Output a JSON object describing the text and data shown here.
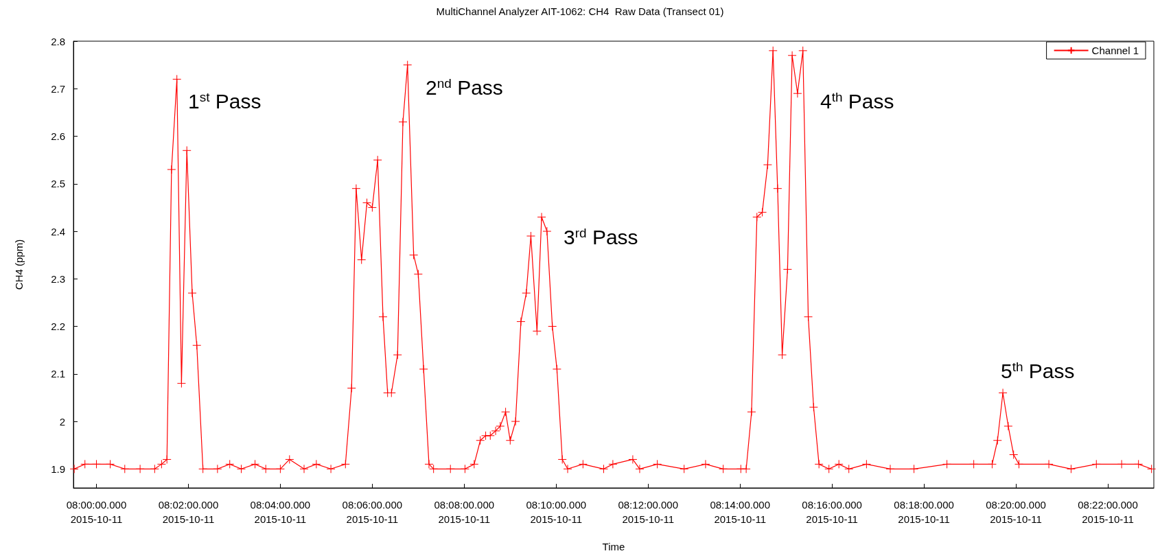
{
  "chart_data": {
    "type": "line",
    "title": "MultiChannel Analyzer AIT-1062: CH4  Raw Data (Transect 01)",
    "xlabel": "Time",
    "ylabel": "CH4 (ppm)",
    "x": [
      "2015-10-11T07:59:31",
      "2015-10-11T07:59:45",
      "2015-10-11T08:00:00",
      "2015-10-11T08:00:18",
      "2015-10-11T08:00:37",
      "2015-10-11T08:00:57",
      "2015-10-11T08:01:16",
      "2015-10-11T08:01:25",
      "2015-10-11T08:01:32",
      "2015-10-11T08:01:38",
      "2015-10-11T08:01:45",
      "2015-10-11T08:01:51",
      "2015-10-11T08:01:58",
      "2015-10-11T08:02:05",
      "2015-10-11T08:02:11",
      "2015-10-11T08:02:19",
      "2015-10-11T08:02:38",
      "2015-10-11T08:02:54",
      "2015-10-11T08:03:09",
      "2015-10-11T08:03:27",
      "2015-10-11T08:03:41",
      "2015-10-11T08:04:00",
      "2015-10-11T08:04:12",
      "2015-10-11T08:04:31",
      "2015-10-11T08:04:47",
      "2015-10-11T08:05:06",
      "2015-10-11T08:05:25",
      "2015-10-11T08:05:33",
      "2015-10-11T08:05:39",
      "2015-10-11T08:05:46",
      "2015-10-11T08:05:53",
      "2015-10-11T08:06:00",
      "2015-10-11T08:06:07",
      "2015-10-11T08:06:14",
      "2015-10-11T08:06:20",
      "2015-10-11T08:06:25",
      "2015-10-11T08:06:33",
      "2015-10-11T08:06:40",
      "2015-10-11T08:06:46",
      "2015-10-11T08:06:54",
      "2015-10-11T08:07:00",
      "2015-10-11T08:07:07",
      "2015-10-11T08:07:14",
      "2015-10-11T08:07:20",
      "2015-10-11T08:07:42",
      "2015-10-11T08:08:01",
      "2015-10-11T08:08:13",
      "2015-10-11T08:08:21",
      "2015-10-11T08:08:28",
      "2015-10-11T08:08:34",
      "2015-10-11T08:08:41",
      "2015-10-11T08:08:47",
      "2015-10-11T08:08:54",
      "2015-10-11T08:09:00",
      "2015-10-11T08:09:07",
      "2015-10-11T08:09:14",
      "2015-10-11T08:09:21",
      "2015-10-11T08:09:27",
      "2015-10-11T08:09:35",
      "2015-10-11T08:09:41",
      "2015-10-11T08:09:48",
      "2015-10-11T08:09:55",
      "2015-10-11T08:10:01",
      "2015-10-11T08:10:08",
      "2015-10-11T08:10:15",
      "2015-10-11T08:10:35",
      "2015-10-11T08:11:02",
      "2015-10-11T08:11:14",
      "2015-10-11T08:11:40",
      "2015-10-11T08:11:49",
      "2015-10-11T08:12:12",
      "2015-10-11T08:12:47",
      "2015-10-11T08:13:15",
      "2015-10-11T08:13:38",
      "2015-10-11T08:14:01",
      "2015-10-11T08:14:08",
      "2015-10-11T08:14:15",
      "2015-10-11T08:14:22",
      "2015-10-11T08:14:29",
      "2015-10-11T08:14:36",
      "2015-10-11T08:14:43",
      "2015-10-11T08:14:49",
      "2015-10-11T08:14:55",
      "2015-10-11T08:15:02",
      "2015-10-11T08:15:08",
      "2015-10-11T08:15:15",
      "2015-10-11T08:15:22",
      "2015-10-11T08:15:29",
      "2015-10-11T08:15:36",
      "2015-10-11T08:15:43",
      "2015-10-11T08:15:56",
      "2015-10-11T08:16:09",
      "2015-10-11T08:16:22",
      "2015-10-11T08:16:45",
      "2015-10-11T08:17:16",
      "2015-10-11T08:17:47",
      "2015-10-11T08:18:30",
      "2015-10-11T08:19:05",
      "2015-10-11T08:19:29",
      "2015-10-11T08:19:36",
      "2015-10-11T08:19:43",
      "2015-10-11T08:19:50",
      "2015-10-11T08:19:57",
      "2015-10-11T08:20:04",
      "2015-10-11T08:20:43",
      "2015-10-11T08:21:12",
      "2015-10-11T08:21:45",
      "2015-10-11T08:22:18",
      "2015-10-11T08:22:40",
      "2015-10-11T08:22:57"
    ],
    "series": [
      {
        "name": "Channel 1",
        "color": "#ff0000",
        "values": [
          1.9,
          1.91,
          1.91,
          1.91,
          1.9,
          1.9,
          1.9,
          1.91,
          1.92,
          2.53,
          2.72,
          2.08,
          2.57,
          2.27,
          2.16,
          1.9,
          1.9,
          1.91,
          1.9,
          1.91,
          1.9,
          1.9,
          1.92,
          1.9,
          1.91,
          1.9,
          1.91,
          2.07,
          2.49,
          2.34,
          2.46,
          2.45,
          2.55,
          2.22,
          2.06,
          2.06,
          2.14,
          2.63,
          2.75,
          2.35,
          2.31,
          2.11,
          1.91,
          1.9,
          1.9,
          1.9,
          1.91,
          1.96,
          1.97,
          1.97,
          1.98,
          1.99,
          2.02,
          1.96,
          2.0,
          2.21,
          2.27,
          2.39,
          2.19,
          2.43,
          2.4,
          2.2,
          2.11,
          1.92,
          1.9,
          1.91,
          1.9,
          1.91,
          1.92,
          1.9,
          1.91,
          1.9,
          1.91,
          1.9,
          1.9,
          1.9,
          2.02,
          2.43,
          2.44,
          2.54,
          2.78,
          2.49,
          2.14,
          2.32,
          2.77,
          2.69,
          2.78,
          2.22,
          2.03,
          1.91,
          1.9,
          1.91,
          1.9,
          1.91,
          1.9,
          1.9,
          1.91,
          1.91,
          1.91,
          1.96,
          2.06,
          1.99,
          1.93,
          1.91,
          1.91,
          1.9,
          1.91,
          1.91,
          1.91,
          1.9
        ]
      }
    ],
    "xlim": [
      "2015-10-11T07:59:30",
      "2015-10-11T08:23:00"
    ],
    "xticks": [
      {
        "value": "2015-10-11T08:00:00",
        "label": "08:00:00.000\n2015-10-11"
      },
      {
        "value": "2015-10-11T08:02:00",
        "label": "08:02:00.000\n2015-10-11"
      },
      {
        "value": "2015-10-11T08:04:00",
        "label": "08:04:00.000\n2015-10-11"
      },
      {
        "value": "2015-10-11T08:06:00",
        "label": "08:06:00.000\n2015-10-11"
      },
      {
        "value": "2015-10-11T08:08:00",
        "label": "08:08:00.000\n2015-10-11"
      },
      {
        "value": "2015-10-11T08:10:00",
        "label": "08:10:00.000\n2015-10-11"
      },
      {
        "value": "2015-10-11T08:12:00",
        "label": "08:12:00.000\n2015-10-11"
      },
      {
        "value": "2015-10-11T08:14:00",
        "label": "08:14:00.000\n2015-10-11"
      },
      {
        "value": "2015-10-11T08:16:00",
        "label": "08:16:00.000\n2015-10-11"
      },
      {
        "value": "2015-10-11T08:18:00",
        "label": "08:18:00.000\n2015-10-11"
      },
      {
        "value": "2015-10-11T08:20:00",
        "label": "08:20:00.000\n2015-10-11"
      },
      {
        "value": "2015-10-11T08:22:00",
        "label": "08:22:00.000\n2015-10-11"
      }
    ],
    "ylim": [
      1.86,
      2.8
    ],
    "yticks": [
      1.9,
      2,
      2.1,
      2.2,
      2.3,
      2.4,
      2.5,
      2.6,
      2.7,
      2.8
    ],
    "legend": "top right",
    "marker": "cross",
    "line_style": "solid",
    "annotations": [
      "1$^{st}$ Pass",
      "2$^{nd}$ Pass",
      "3$^{rd}$ Pass",
      "4$^{th}$ Pass",
      "5$^{th}$ Pass"
    ]
  }
}
